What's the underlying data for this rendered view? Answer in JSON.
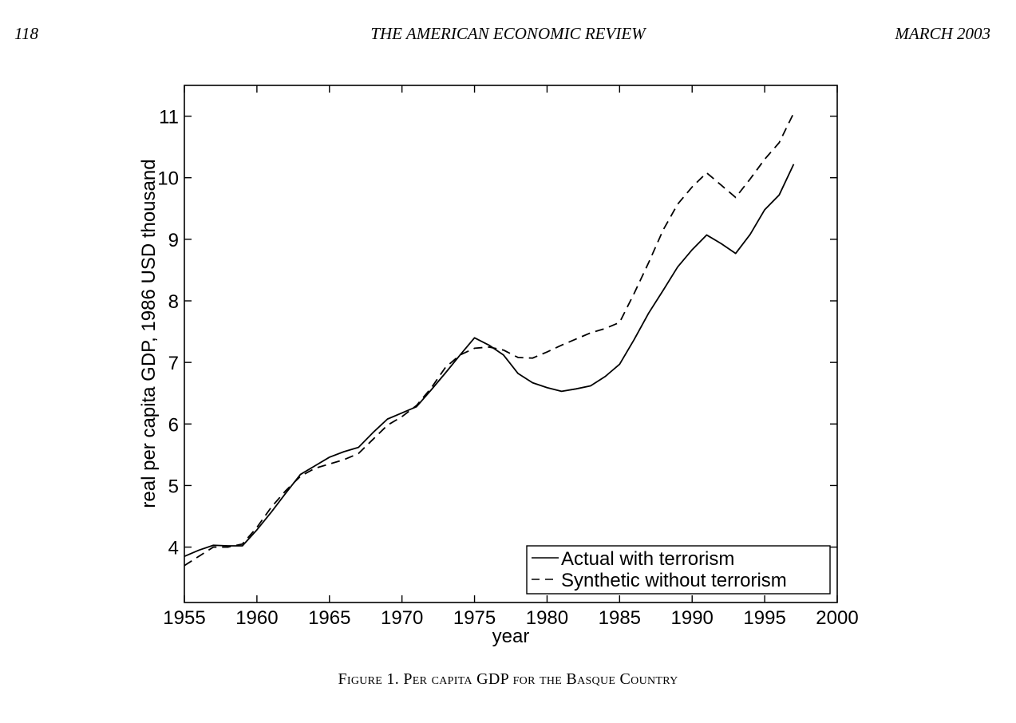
{
  "header": {
    "page_number": "118",
    "journal": "THE AMERICAN ECONOMIC REVIEW",
    "issue": "MARCH 2003"
  },
  "caption": {
    "label": "Figure 1.",
    "text": "Per capita GDP for the Basque Country"
  },
  "chart_data": {
    "type": "line",
    "title": "",
    "xlabel": "year",
    "ylabel": "real per capita GDP, 1986 USD thousand",
    "xlim": [
      1955,
      2000
    ],
    "ylim": [
      3.1,
      11.5
    ],
    "xticks": [
      1955,
      1960,
      1965,
      1970,
      1975,
      1980,
      1985,
      1990,
      1995,
      2000
    ],
    "yticks": [
      4,
      5,
      6,
      7,
      8,
      9,
      10,
      11
    ],
    "grid": false,
    "legend_position": "bottom-right",
    "x": [
      1955,
      1956,
      1957,
      1958,
      1959,
      1960,
      1961,
      1962,
      1963,
      1964,
      1965,
      1966,
      1967,
      1968,
      1969,
      1970,
      1971,
      1972,
      1973,
      1974,
      1975,
      1976,
      1977,
      1978,
      1979,
      1980,
      1981,
      1982,
      1983,
      1984,
      1985,
      1986,
      1987,
      1988,
      1989,
      1990,
      1991,
      1992,
      1993,
      1994,
      1995,
      1996,
      1997
    ],
    "series": [
      {
        "name": "Actual with terrorism",
        "style": "solid",
        "color": "#000000",
        "values": [
          3.85,
          3.95,
          4.03,
          4.02,
          4.02,
          4.28,
          4.57,
          4.88,
          5.18,
          5.32,
          5.46,
          5.55,
          5.62,
          5.86,
          6.08,
          6.18,
          6.28,
          6.55,
          6.83,
          7.12,
          7.4,
          7.28,
          7.12,
          6.82,
          6.67,
          6.59,
          6.53,
          6.57,
          6.62,
          6.77,
          6.97,
          7.37,
          7.8,
          8.17,
          8.55,
          8.83,
          9.07,
          8.93,
          8.77,
          9.08,
          9.48,
          9.72,
          10.22
        ]
      },
      {
        "name": "Synthetic without terrorism",
        "style": "dashed",
        "color": "#000000",
        "values": [
          3.7,
          3.85,
          4.0,
          4.0,
          4.05,
          4.32,
          4.65,
          4.92,
          5.15,
          5.28,
          5.35,
          5.42,
          5.52,
          5.75,
          5.98,
          6.12,
          6.3,
          6.58,
          6.92,
          7.12,
          7.23,
          7.25,
          7.2,
          7.08,
          7.07,
          7.17,
          7.28,
          7.38,
          7.48,
          7.55,
          7.65,
          8.12,
          8.62,
          9.15,
          9.57,
          9.85,
          10.08,
          9.88,
          9.68,
          9.98,
          10.3,
          10.57,
          11.05
        ]
      }
    ]
  }
}
